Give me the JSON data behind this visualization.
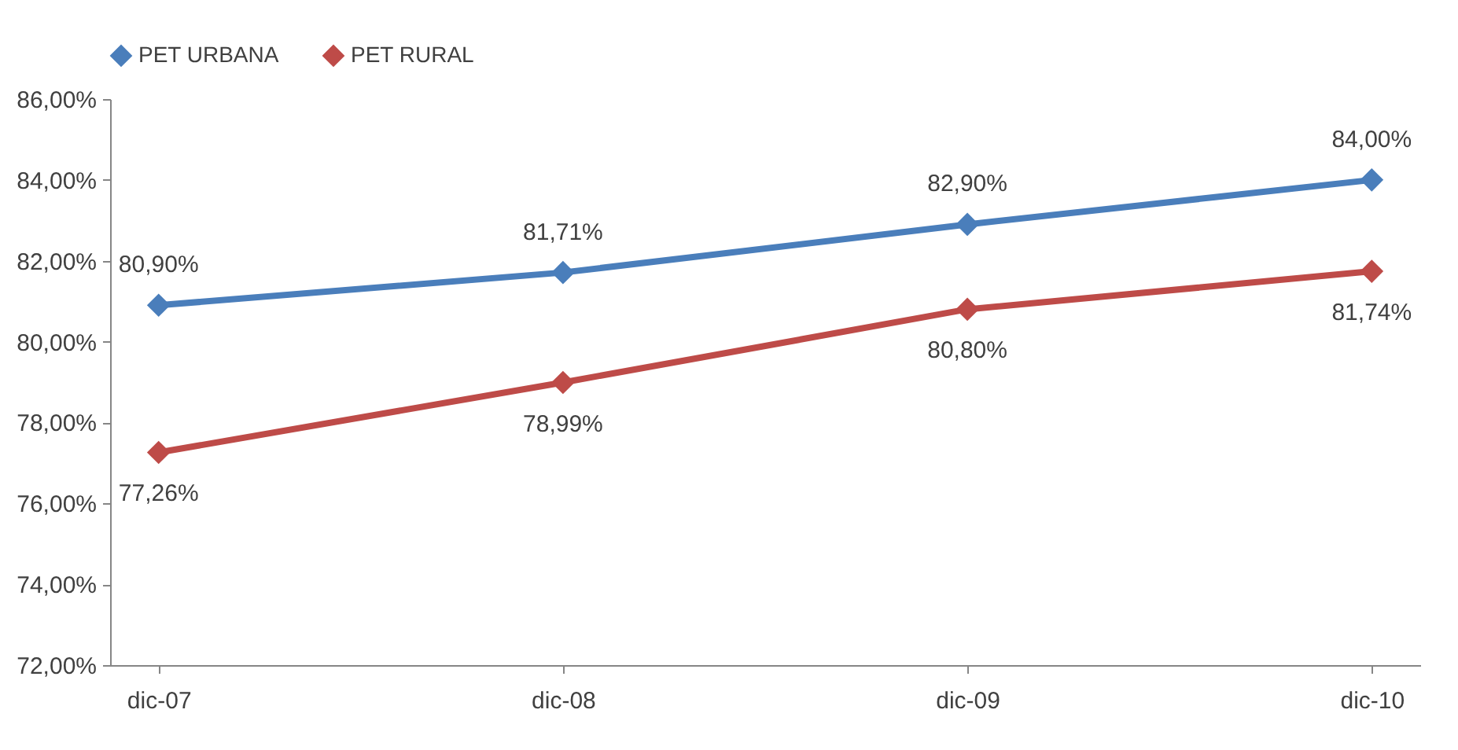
{
  "chart_data": {
    "type": "line",
    "categories": [
      "dic-07",
      "dic-08",
      "dic-09",
      "dic-10"
    ],
    "series": [
      {
        "name": "PET URBANA",
        "color": "#4a7ebb",
        "values": [
          80.9,
          81.71,
          82.9,
          84.0
        ],
        "value_labels": [
          "80,90%",
          "81,71%",
          "82,90%",
          "84,00%"
        ]
      },
      {
        "name": "PET RURAL",
        "color": "#be4b48",
        "values": [
          77.26,
          78.99,
          80.8,
          81.74
        ],
        "value_labels": [
          "77,26%",
          "78,99%",
          "80,80%",
          "81,74%"
        ]
      }
    ],
    "ylim": [
      72,
      86
    ],
    "yticks": [
      {
        "value": 72,
        "label": "72,00%"
      },
      {
        "value": 74,
        "label": "74,00%"
      },
      {
        "value": 76,
        "label": "76,00%"
      },
      {
        "value": 78,
        "label": "78,00%"
      },
      {
        "value": 80,
        "label": "80,00%"
      },
      {
        "value": 82,
        "label": "82,00%"
      },
      {
        "value": 84,
        "label": "84,00%"
      },
      {
        "value": 86,
        "label": "86,00%"
      }
    ],
    "grid": false,
    "legend": "top",
    "marker": "diamond"
  }
}
